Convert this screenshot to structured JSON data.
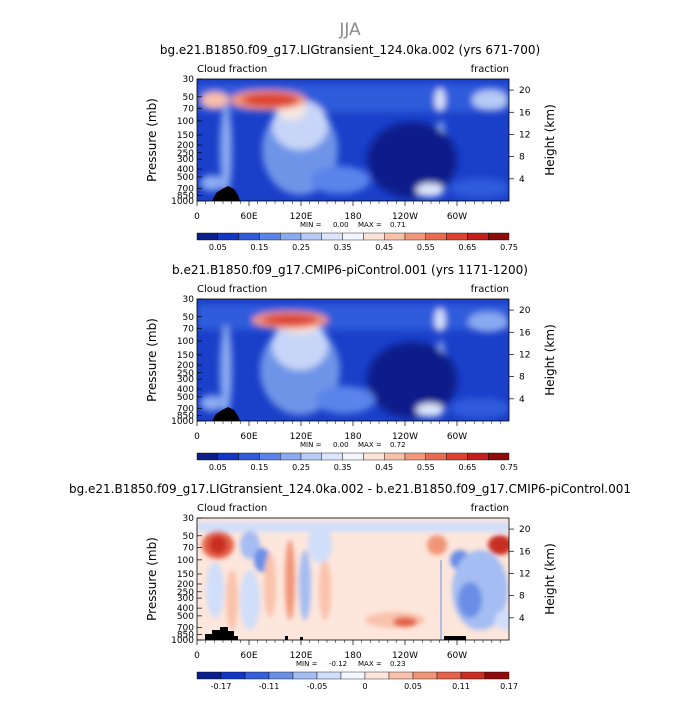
{
  "season": "JJA",
  "chart_data": [
    {
      "type": "heatmap",
      "title": "bg.e21.B1850.f09_g17.LIGtransient_124.0ka.002 (yrs 671-700)",
      "variable": "Cloud fraction",
      "units": "fraction",
      "ylabel": "Pressure (mb)",
      "ylabel_right": "Height (km)",
      "x_ticks": [
        "0",
        "60E",
        "120E",
        "180",
        "120W",
        "60W"
      ],
      "y_ticks": [
        "30",
        "50",
        "70",
        "100",
        "150",
        "200",
        "250",
        "300",
        "400",
        "500",
        "700",
        "850",
        "1000"
      ],
      "y_ticks_right": [
        "20",
        "16",
        "12",
        "8",
        "4"
      ],
      "min_label": "MIN =",
      "min": "0.00",
      "max_label": "MAX =",
      "max": "0.71",
      "colorbar_labels": [
        "0.05",
        "0.15",
        "0.25",
        "0.35",
        "0.45",
        "0.55",
        "0.65",
        "0.75"
      ],
      "colorbar_colors": [
        "#0b1f8a",
        "#1436c4",
        "#2f5bdb",
        "#5a84ea",
        "#8aaaf0",
        "#b6cbf6",
        "#dbe5fb",
        "#f3f6fe",
        "#fde2d6",
        "#f9c0a8",
        "#f3977a",
        "#ea6c50",
        "#dd4230",
        "#c21e1b",
        "#8e0b0b"
      ]
    },
    {
      "type": "heatmap",
      "title": "b.e21.B1850.f09_g17.CMIP6-piControl.001 (yrs 1171-1200)",
      "variable": "Cloud fraction",
      "units": "fraction",
      "ylabel": "Pressure (mb)",
      "ylabel_right": "Height (km)",
      "x_ticks": [
        "0",
        "60E",
        "120E",
        "180",
        "120W",
        "60W"
      ],
      "y_ticks": [
        "30",
        "50",
        "70",
        "100",
        "150",
        "200",
        "250",
        "300",
        "400",
        "500",
        "700",
        "850",
        "1000"
      ],
      "y_ticks_right": [
        "20",
        "16",
        "12",
        "8",
        "4"
      ],
      "min_label": "MIN =",
      "min": "0.00",
      "max_label": "MAX =",
      "max": "0.72",
      "colorbar_labels": [
        "0.05",
        "0.15",
        "0.25",
        "0.35",
        "0.45",
        "0.55",
        "0.65",
        "0.75"
      ],
      "colorbar_colors": [
        "#0b1f8a",
        "#1436c4",
        "#2f5bdb",
        "#5a84ea",
        "#8aaaf0",
        "#b6cbf6",
        "#dbe5fb",
        "#f3f6fe",
        "#fde2d6",
        "#f9c0a8",
        "#f3977a",
        "#ea6c50",
        "#dd4230",
        "#c21e1b",
        "#8e0b0b"
      ]
    },
    {
      "type": "heatmap",
      "title": "bg.e21.B1850.f09_g17.LIGtransient_124.0ka.002 - b.e21.B1850.f09_g17.CMIP6-piControl.001",
      "variable": "Cloud fraction",
      "units": "fraction",
      "ylabel": "Pressure (mb)",
      "ylabel_right": "Height (km)",
      "x_ticks": [
        "0",
        "60E",
        "120E",
        "180",
        "120W",
        "60W"
      ],
      "y_ticks": [
        "30",
        "50",
        "70",
        "100",
        "150",
        "200",
        "250",
        "300",
        "400",
        "500",
        "700",
        "850",
        "1000"
      ],
      "y_ticks_right": [
        "20",
        "16",
        "12",
        "8",
        "4"
      ],
      "min_label": "MIN =",
      "min": "-0.12",
      "max_label": "MAX =",
      "max": "0.23",
      "colorbar_labels": [
        "-0.17",
        "-0.11",
        "-0.05",
        "0",
        "0.05",
        "0.11",
        "0.17"
      ],
      "colorbar_colors": [
        "#0b1f8a",
        "#1436c4",
        "#3560d8",
        "#6a8ee6",
        "#a4bdf2",
        "#d0defa",
        "#f3f6fe",
        "#fde6dc",
        "#f9c2ac",
        "#f19578",
        "#e3624a",
        "#c92d24",
        "#8e0b0b"
      ]
    }
  ]
}
